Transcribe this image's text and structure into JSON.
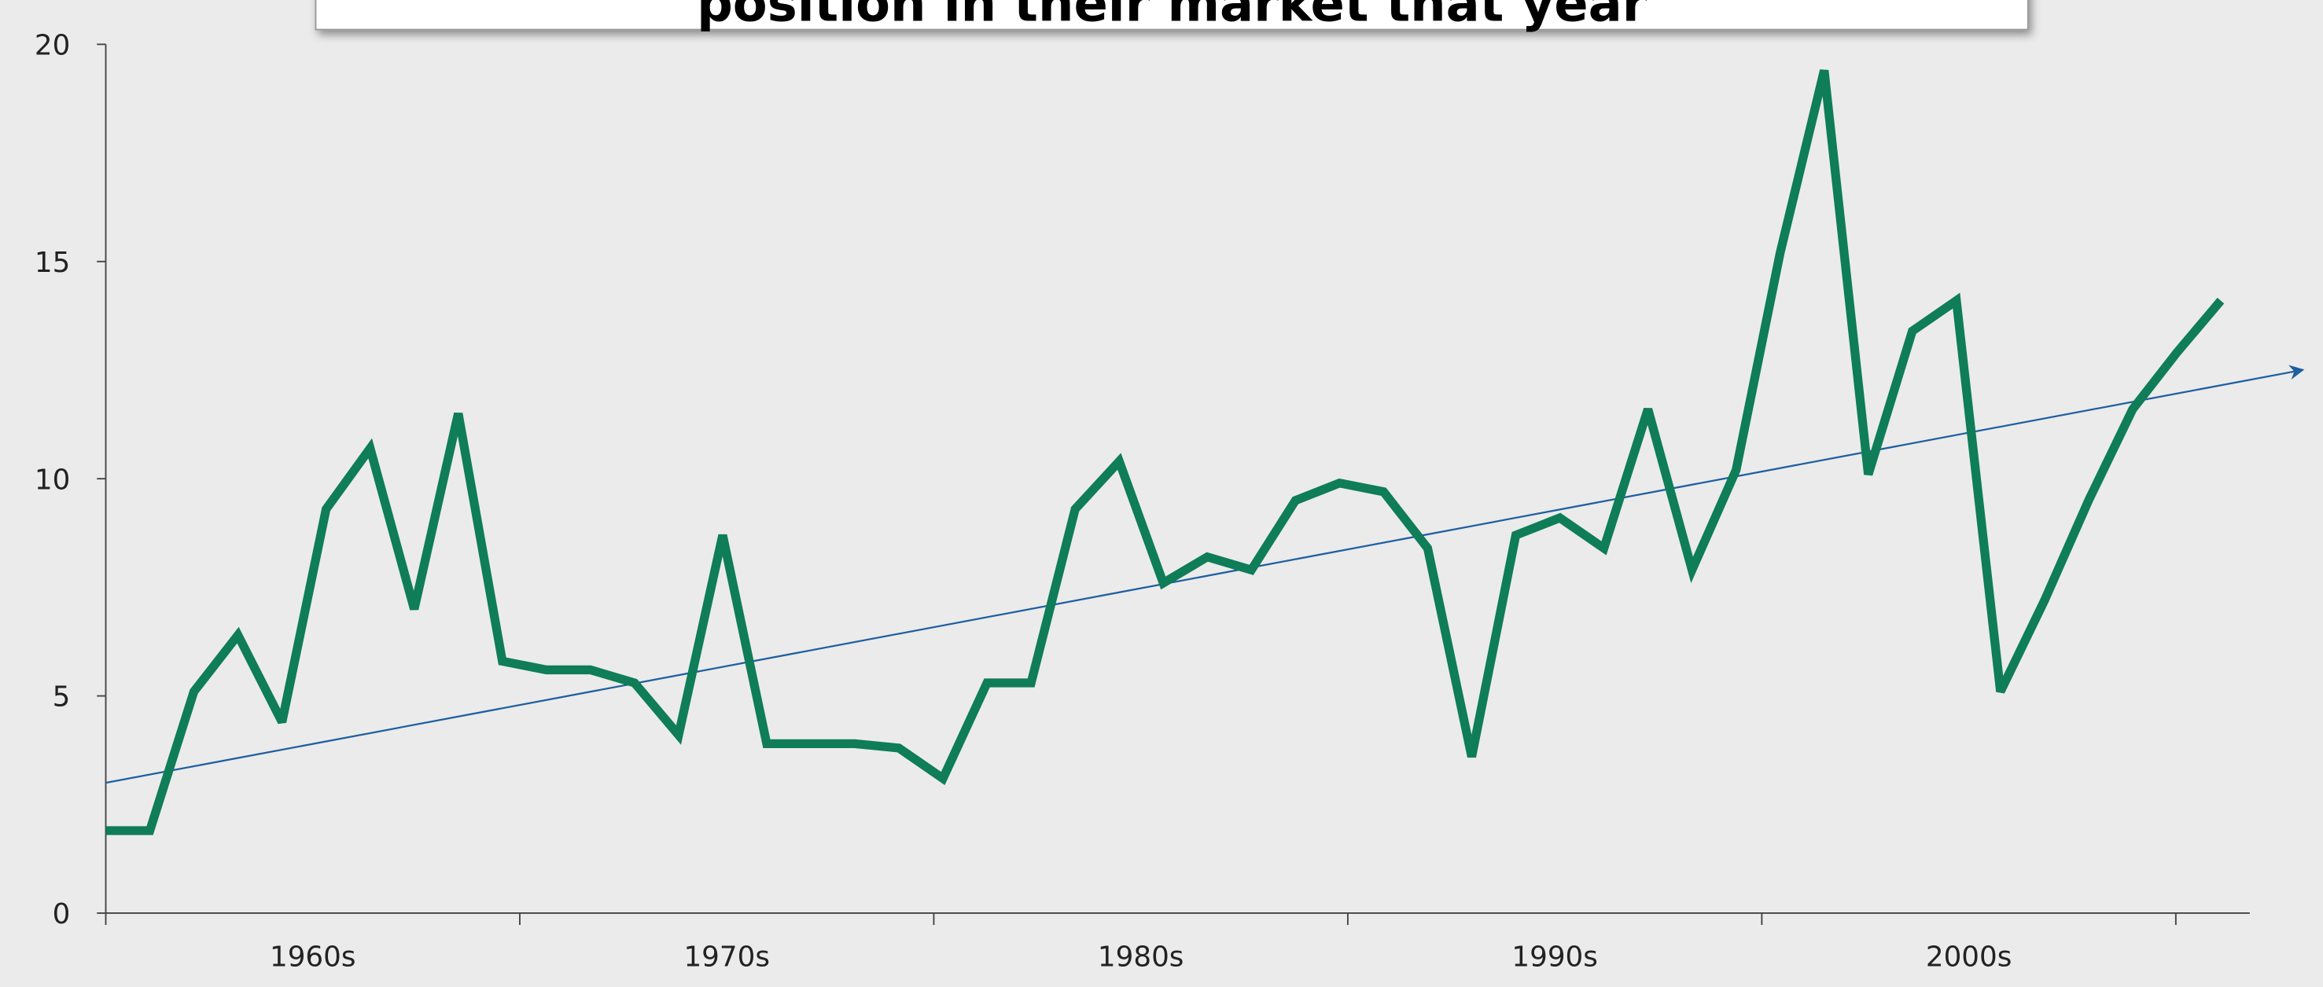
{
  "chart_data": {
    "type": "line",
    "title": "position in their market that year",
    "categories": [
      null,
      null,
      null,
      null,
      null,
      null,
      null,
      null,
      null,
      null,
      null,
      null,
      null,
      null,
      null,
      null,
      null,
      null,
      null,
      null,
      null,
      null,
      null,
      null,
      null,
      null,
      null,
      null,
      null,
      null,
      null,
      null,
      null,
      null,
      null,
      null,
      null,
      null,
      null,
      null,
      null,
      null,
      null,
      null,
      null,
      null,
      null,
      null,
      null
    ],
    "xtick_labels": [
      "1960s",
      "1970s",
      "1980s",
      "1990s",
      "2000s"
    ],
    "series": [
      {
        "color": "#0f7d57",
        "values": [
          1.9,
          1.9,
          5.1,
          6.4,
          4.4,
          9.3,
          10.7,
          7.0,
          11.5,
          5.8,
          5.6,
          5.6,
          5.3,
          4.1,
          8.7,
          3.9,
          3.9,
          3.9,
          3.8,
          3.1,
          5.3,
          5.3,
          9.3,
          10.4,
          7.6,
          8.2,
          7.9,
          9.5,
          9.9,
          9.7,
          8.4,
          3.6,
          8.7,
          9.1,
          8.4,
          11.6,
          7.9,
          10.2,
          15.2,
          19.4,
          10.1,
          13.4,
          14.1,
          5.1,
          7.2,
          9.5,
          11.6,
          12.9,
          14.1
        ]
      }
    ],
    "trendline": {
      "color": "#1f5fa0",
      "values": [
        3.0,
        12.5
      ]
    },
    "ylim": [
      0,
      20
    ],
    "yticks": [
      0,
      5,
      10,
      15,
      20
    ]
  }
}
